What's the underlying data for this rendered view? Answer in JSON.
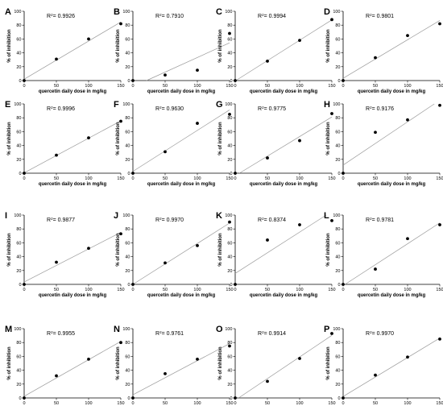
{
  "figure": {
    "xlabel": "quercetin daily dose in mg/kg",
    "ylabel": "% of inhibition",
    "x_ticks": [
      "0",
      "50",
      "100",
      "150"
    ],
    "y_ticks": [
      "0",
      "20",
      "40",
      "60",
      "80",
      "100"
    ]
  },
  "chart_data": [
    {
      "panel": "A",
      "type": "scatter",
      "r2": "0.9926",
      "x": [
        0,
        50,
        100,
        150
      ],
      "y": [
        0,
        31,
        60,
        82
      ],
      "xlim": [
        0,
        150
      ],
      "ylim": [
        0,
        100
      ],
      "fit_line": true
    },
    {
      "panel": "B",
      "type": "scatter",
      "r2": "0.7910",
      "x": [
        0,
        50,
        100,
        150
      ],
      "y": [
        0,
        8,
        15,
        68
      ],
      "xlim": [
        0,
        150
      ],
      "ylim": [
        0,
        100
      ],
      "fit_line": true
    },
    {
      "panel": "C",
      "type": "scatter",
      "r2": "0.9994",
      "x": [
        0,
        50,
        100,
        150
      ],
      "y": [
        0,
        28,
        58,
        88
      ],
      "xlim": [
        0,
        150
      ],
      "ylim": [
        0,
        100
      ],
      "fit_line": true
    },
    {
      "panel": "D",
      "type": "scatter",
      "r2": "0.9801",
      "x": [
        0,
        50,
        100,
        150
      ],
      "y": [
        0,
        33,
        65,
        82
      ],
      "xlim": [
        0,
        150
      ],
      "ylim": [
        0,
        100
      ],
      "fit_line": true
    },
    {
      "panel": "E",
      "type": "scatter",
      "r2": "0.9996",
      "x": [
        0,
        50,
        100,
        150
      ],
      "y": [
        0,
        26,
        51,
        75
      ],
      "xlim": [
        0,
        150
      ],
      "ylim": [
        0,
        100
      ],
      "fit_line": true
    },
    {
      "panel": "F",
      "type": "scatter",
      "r2": "0.9630",
      "x": [
        0,
        50,
        100,
        150
      ],
      "y": [
        0,
        31,
        72,
        85
      ],
      "xlim": [
        0,
        150
      ],
      "ylim": [
        0,
        100
      ],
      "fit_line": true
    },
    {
      "panel": "G",
      "type": "scatter",
      "r2": "0.9775",
      "x": [
        0,
        50,
        100,
        150
      ],
      "y": [
        0,
        22,
        47,
        86
      ],
      "xlim": [
        0,
        150
      ],
      "ylim": [
        0,
        100
      ],
      "fit_line": true
    },
    {
      "panel": "H",
      "type": "scatter",
      "r2": "0.9176",
      "x": [
        0,
        50,
        100,
        150
      ],
      "y": [
        0,
        59,
        77,
        98
      ],
      "xlim": [
        0,
        150
      ],
      "ylim": [
        0,
        100
      ],
      "fit_line": true
    },
    {
      "panel": "I",
      "type": "scatter",
      "r2": "0.9877",
      "x": [
        0,
        50,
        100,
        150
      ],
      "y": [
        0,
        32,
        52,
        73
      ],
      "xlim": [
        0,
        150
      ],
      "ylim": [
        0,
        100
      ],
      "fit_line": true
    },
    {
      "panel": "J",
      "type": "scatter",
      "r2": "0.9970",
      "x": [
        0,
        50,
        100,
        150
      ],
      "y": [
        0,
        31,
        56,
        90
      ],
      "xlim": [
        0,
        150
      ],
      "ylim": [
        0,
        100
      ],
      "fit_line": true
    },
    {
      "panel": "K",
      "type": "scatter",
      "r2": "0.8374",
      "x": [
        0,
        50,
        100,
        150
      ],
      "y": [
        0,
        64,
        86,
        92
      ],
      "xlim": [
        0,
        150
      ],
      "ylim": [
        0,
        100
      ],
      "fit_line": true
    },
    {
      "panel": "L",
      "type": "scatter",
      "r2": "0.9781",
      "x": [
        0,
        50,
        100,
        150
      ],
      "y": [
        0,
        22,
        66,
        86
      ],
      "xlim": [
        0,
        150
      ],
      "ylim": [
        0,
        100
      ],
      "fit_line": true
    },
    {
      "panel": "M",
      "type": "scatter",
      "r2": "0.9955",
      "x": [
        0,
        50,
        100,
        150
      ],
      "y": [
        0,
        32,
        56,
        80
      ],
      "xlim": [
        0,
        150
      ],
      "ylim": [
        0,
        100
      ],
      "fit_line": true
    },
    {
      "panel": "N",
      "type": "scatter",
      "r2": "0.9761",
      "x": [
        0,
        50,
        100,
        150
      ],
      "y": [
        0,
        35,
        56,
        75
      ],
      "xlim": [
        0,
        150
      ],
      "ylim": [
        0,
        100
      ],
      "fit_line": true
    },
    {
      "panel": "O",
      "type": "scatter",
      "r2": "0.9914",
      "x": [
        0,
        50,
        100,
        150
      ],
      "y": [
        0,
        24,
        57,
        93
      ],
      "xlim": [
        0,
        150
      ],
      "ylim": [
        0,
        100
      ],
      "fit_line": true
    },
    {
      "panel": "P",
      "type": "scatter",
      "r2": "0.9970",
      "x": [
        0,
        50,
        100,
        150
      ],
      "y": [
        0,
        33,
        59,
        85
      ],
      "xlim": [
        0,
        150
      ],
      "ylim": [
        0,
        100
      ],
      "fit_line": true
    }
  ]
}
